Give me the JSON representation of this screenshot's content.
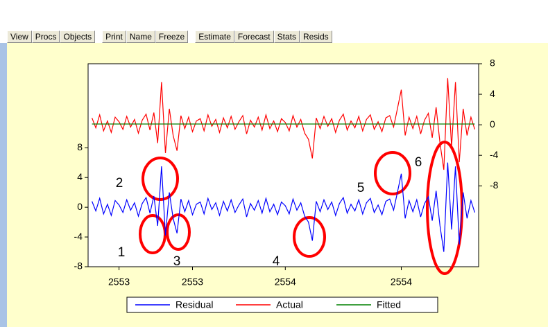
{
  "toolbar": [
    "View",
    "Procs",
    "Objects",
    "Print",
    "Name",
    "Freeze",
    "Estimate",
    "Forecast",
    "Stats",
    "Resids"
  ],
  "chart_data": {
    "type": "line",
    "x": [
      0,
      1,
      2,
      3,
      4,
      5,
      6,
      7,
      8,
      9,
      10,
      11,
      12,
      13,
      14,
      15,
      16,
      17,
      18,
      19,
      20,
      21,
      22,
      23,
      24,
      25,
      26,
      27,
      28,
      29,
      30,
      31,
      32,
      33,
      34,
      35,
      36,
      37,
      38,
      39,
      40,
      41,
      42,
      43,
      44,
      45,
      46,
      47,
      48,
      49,
      50,
      51,
      52,
      53,
      54,
      55,
      56,
      57,
      58,
      59,
      60,
      61,
      62,
      63,
      64,
      65,
      66,
      67,
      68,
      69,
      70,
      71,
      72,
      73,
      74,
      75,
      76,
      77,
      78,
      79,
      80,
      81,
      82,
      83,
      84,
      85,
      86,
      87,
      88,
      89,
      90,
      91,
      92,
      93,
      94,
      95,
      96,
      97,
      98,
      99
    ],
    "xlim": [
      -1,
      100
    ],
    "xticks": [
      {
        "value": 7,
        "label": "2553"
      },
      {
        "value": 26,
        "label": "2553"
      },
      {
        "value": 50,
        "label": "2554"
      },
      {
        "value": 80,
        "label": "2554"
      }
    ],
    "ylim": [
      -8,
      19.3
    ],
    "yticks": [
      -8,
      -4,
      0,
      4,
      8
    ],
    "y2lim": [
      -18.6,
      8
    ],
    "y2ticks": [
      -8,
      -4,
      0,
      4,
      8
    ],
    "series": [
      {
        "name": "Residual",
        "color": "#0000ff",
        "values": [
          0.8,
          -0.5,
          1.2,
          -0.9,
          0.4,
          -1.1,
          0.9,
          0.3,
          -0.7,
          1.0,
          -0.4,
          0.6,
          -1.2,
          0.5,
          1.3,
          -0.8,
          1.5,
          -2.5,
          5.5,
          -3.8,
          2.0,
          -1.5,
          -3.5,
          1.1,
          -0.6,
          0.9,
          -1.0,
          0.4,
          0.7,
          -0.9,
          1.2,
          -0.3,
          0.6,
          -1.1,
          0.8,
          -0.5,
          1.0,
          -0.7,
          0.3,
          1.1,
          -1.3,
          0.5,
          -0.4,
          0.9,
          -0.8,
          1.2,
          -0.6,
          0.4,
          -1.0,
          0.7,
          0.2,
          -0.9,
          1.1,
          -0.4,
          0.6,
          -1.2,
          -2.0,
          -4.5,
          0.8,
          -0.6,
          1.0,
          -0.3,
          0.7,
          -1.1,
          0.5,
          1.3,
          -0.8,
          0.4,
          -0.5,
          1.0,
          -0.9,
          0.6,
          1.2,
          -0.7,
          0.3,
          -1.0,
          0.8,
          1.1,
          -0.4,
          2.0,
          4.5,
          -1.5,
          0.9,
          -0.6,
          1.0,
          -1.3,
          0.5,
          1.4,
          -1.8,
          2.2,
          -2.5,
          -6.0,
          6.0,
          -3.0,
          5.5,
          -5.0,
          2.0,
          -1.5,
          0.9,
          -0.7
        ]
      },
      {
        "name": "Actual",
        "color": "#ff0000",
        "axis": "y2",
        "values": [
          0.9,
          -0.4,
          1.3,
          -0.8,
          0.5,
          -1.0,
          1.0,
          0.4,
          -0.6,
          1.1,
          -0.3,
          0.7,
          -1.1,
          0.6,
          1.4,
          -0.7,
          1.6,
          -2.4,
          5.6,
          -3.7,
          2.1,
          -1.4,
          -3.4,
          1.2,
          -0.5,
          1.0,
          -0.9,
          0.5,
          0.8,
          -0.8,
          1.3,
          -0.2,
          0.7,
          -1.0,
          0.9,
          -0.4,
          1.1,
          -0.6,
          0.4,
          1.2,
          -1.2,
          0.6,
          -0.3,
          1.0,
          -0.7,
          1.3,
          -0.5,
          0.5,
          -0.9,
          0.8,
          0.3,
          -0.8,
          1.2,
          -0.3,
          0.7,
          -1.1,
          -1.9,
          -4.4,
          0.9,
          -0.5,
          1.1,
          -0.2,
          0.8,
          -1.0,
          0.6,
          1.4,
          -0.7,
          0.5,
          -0.4,
          1.1,
          -0.8,
          0.7,
          1.3,
          -0.6,
          0.4,
          -0.9,
          0.9,
          1.2,
          -0.3,
          2.1,
          4.6,
          -1.4,
          1.0,
          -0.5,
          1.1,
          -1.2,
          0.6,
          1.5,
          -1.7,
          2.3,
          -2.4,
          -5.9,
          6.1,
          -2.9,
          5.6,
          -4.9,
          2.1,
          -1.4,
          1.0,
          -0.6
        ]
      },
      {
        "name": "Fitted",
        "color": "#008000",
        "axis": "y2",
        "values": [
          0.1,
          0.1,
          0.1,
          0.1,
          0.1,
          0.1,
          0.1,
          0.1,
          0.1,
          0.1,
          0.1,
          0.1,
          0.1,
          0.1,
          0.1,
          0.1,
          0.1,
          0.1,
          0.1,
          0.1,
          0.1,
          0.1,
          0.1,
          0.1,
          0.1,
          0.1,
          0.1,
          0.1,
          0.1,
          0.1,
          0.1,
          0.1,
          0.1,
          0.1,
          0.1,
          0.1,
          0.1,
          0.1,
          0.1,
          0.1,
          0.1,
          0.1,
          0.1,
          0.1,
          0.1,
          0.1,
          0.1,
          0.1,
          0.1,
          0.1,
          0.1,
          0.1,
          0.1,
          0.1,
          0.1,
          0.1,
          0.1,
          0.1,
          0.1,
          0.1,
          0.1,
          0.1,
          0.1,
          0.1,
          0.1,
          0.1,
          0.1,
          0.1,
          0.1,
          0.1,
          0.1,
          0.1,
          0.1,
          0.1,
          0.1,
          0.1,
          0.1,
          0.1,
          0.1,
          0.1,
          0.1,
          0.1,
          0.1,
          0.1,
          0.1,
          0.1,
          0.1,
          0.1,
          0.1,
          0.1,
          0.1,
          0.1,
          0.1,
          0.1,
          0.1,
          0.1,
          0.1,
          0.1,
          0.1,
          0.1
        ]
      }
    ],
    "annotations": [
      "1",
      "2",
      "3",
      "4",
      "5",
      "6"
    ]
  }
}
